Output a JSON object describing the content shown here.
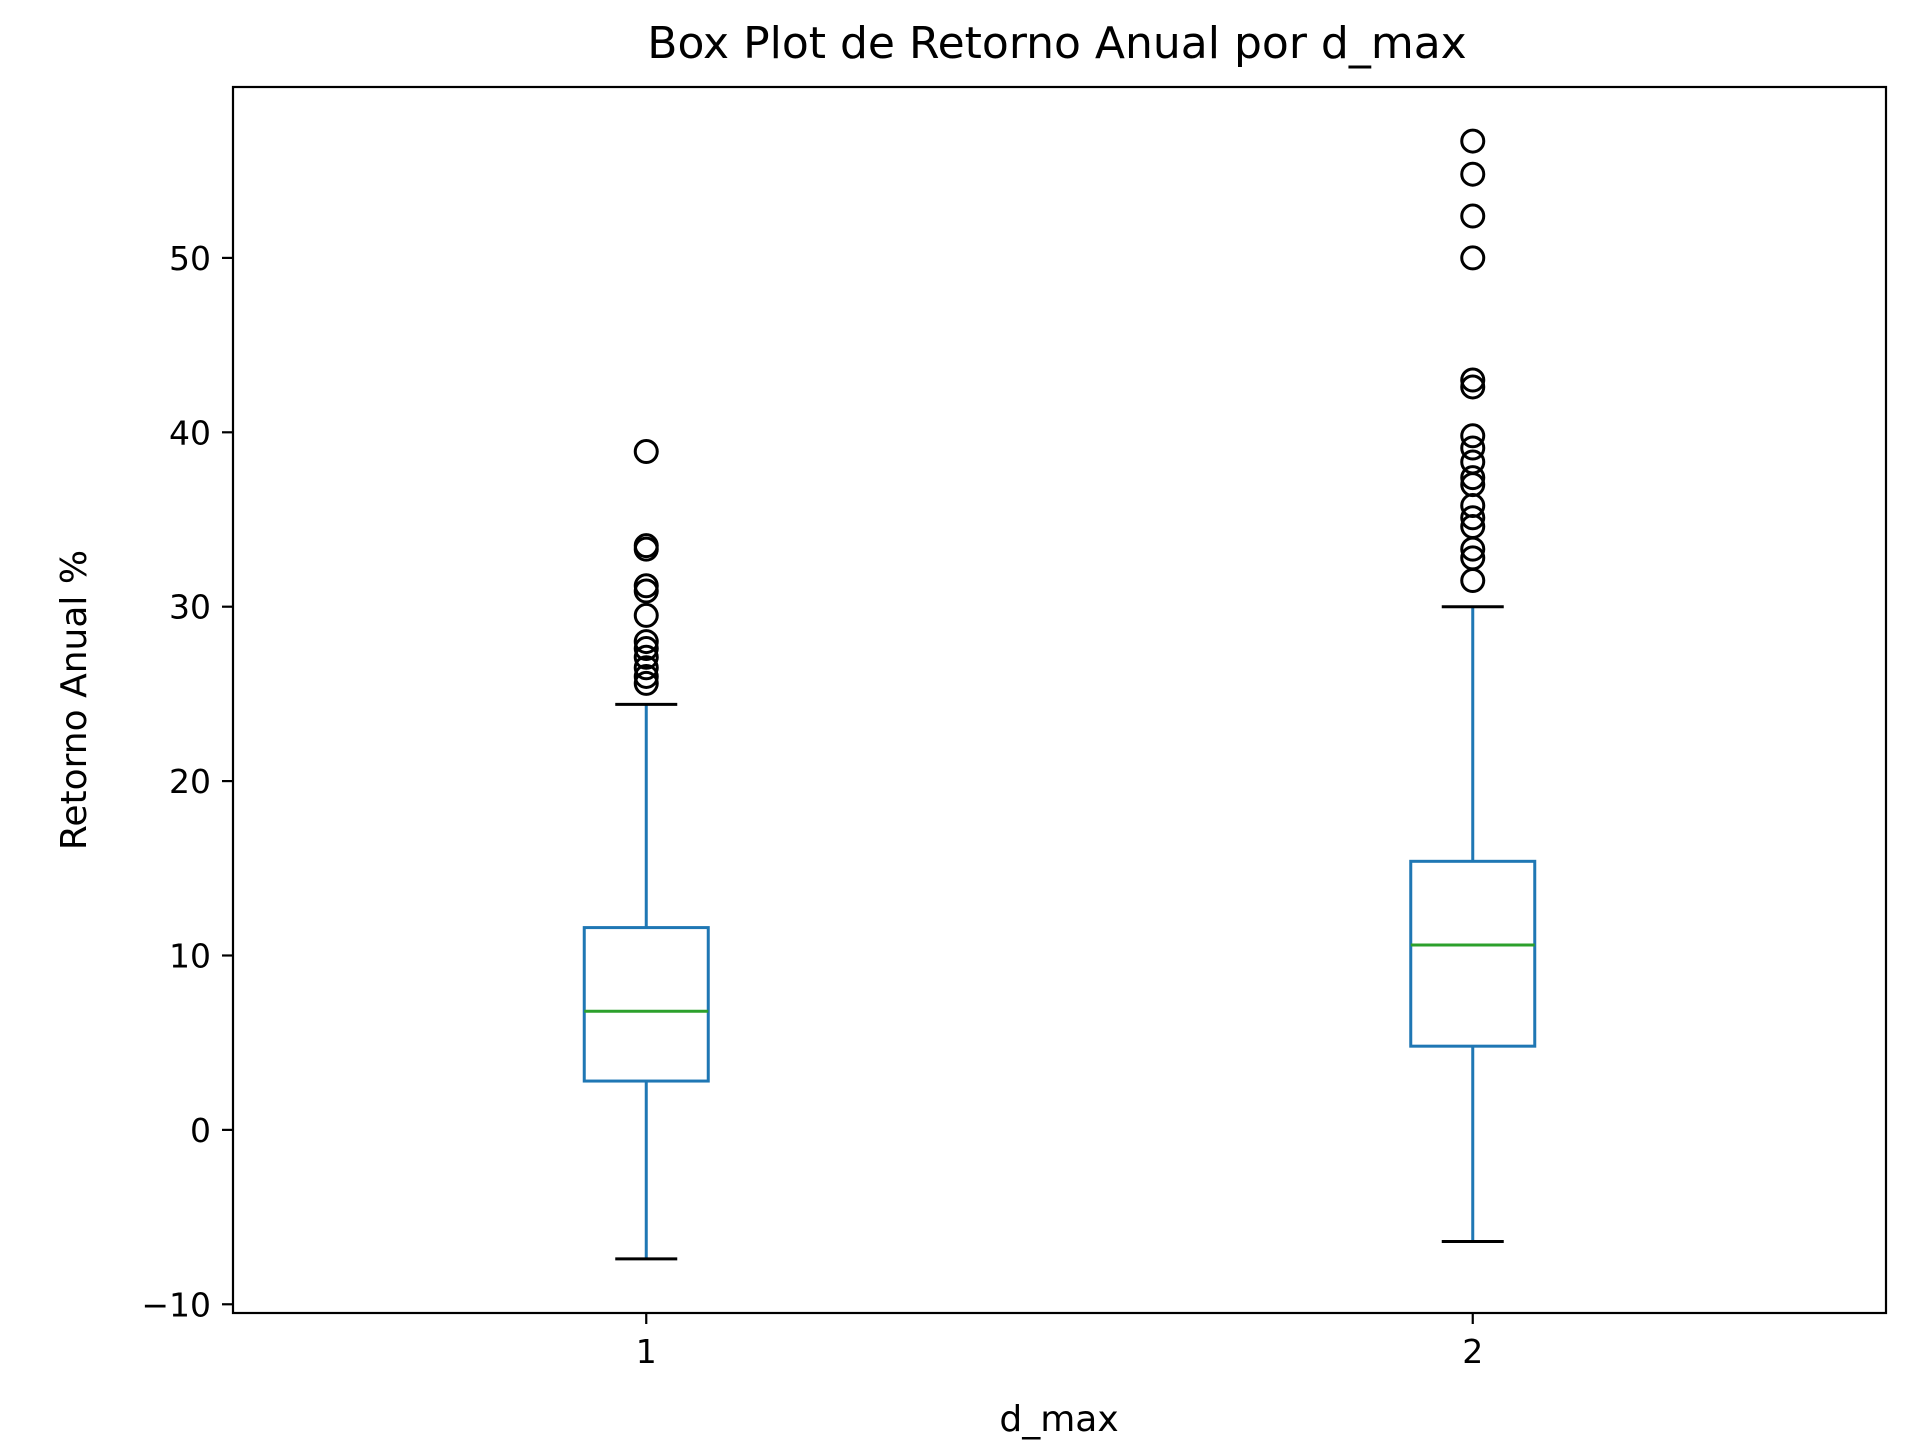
{
  "chart_data": {
    "type": "box",
    "title": "Box Plot de Retorno Anual por d_max",
    "xlabel": "d_max",
    "ylabel": "Retorno Anual %",
    "ylim": [
      -10.5,
      59.8
    ],
    "yticks": [
      -10,
      0,
      10,
      20,
      30,
      40,
      50
    ],
    "ytick_labels": [
      "−10",
      "0",
      "10",
      "20",
      "30",
      "40",
      "50"
    ],
    "grid": false,
    "colors": {
      "box": "#1f77b4",
      "median": "#2ca02c",
      "cap": "#000000",
      "flier": "#000000"
    },
    "categories": [
      "1",
      "2"
    ],
    "boxes": [
      {
        "category": "1",
        "whisker_low": -7.4,
        "q1": 2.8,
        "median": 6.8,
        "q3": 11.6,
        "whisker_high": 24.4,
        "outliers": [
          25.6,
          26.0,
          26.5,
          27.1,
          27.6,
          28.0,
          29.5,
          30.9,
          31.2,
          33.3,
          33.5,
          38.9
        ]
      },
      {
        "category": "2",
        "whisker_low": -6.4,
        "q1": 4.8,
        "median": 10.6,
        "q3": 15.4,
        "whisker_high": 30.0,
        "outliers": [
          31.5,
          32.8,
          33.3,
          34.6,
          35.1,
          35.8,
          37.0,
          37.4,
          38.3,
          39.1,
          39.8,
          42.6,
          43.0,
          50.0,
          52.4,
          54.8,
          56.7
        ]
      }
    ]
  }
}
